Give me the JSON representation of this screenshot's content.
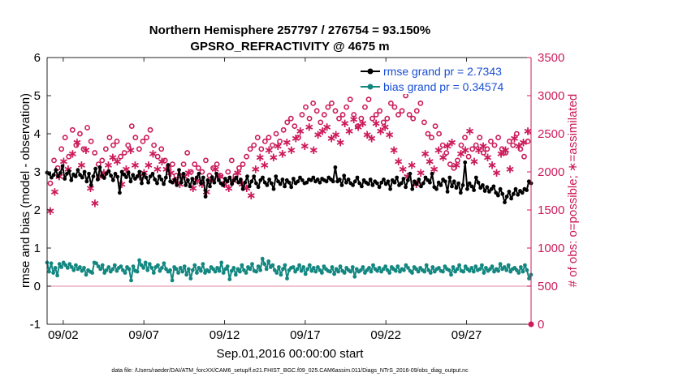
{
  "chart_data": {
    "type": "line",
    "title": "Northern Hemisphere 257797 / 276754 = 93.150%",
    "subtitle": "GPSRO_REFRACTIVITY @ 4675 m",
    "xlabel": "Sep.01,2016 00:00:00 start",
    "ylabel": "rmse and bias (model - observation)",
    "ylabel_right": "# of obs: o=possible; ∗=assimilated",
    "footnote": "data file: /Users/raeder/DAI/ATM_forcXX/CAM6_setup/f.e21.FHIST_BGC.f09_025.CAM6assim.011/Diags_NTrS_2016-09/obs_diag_output.nc",
    "x_tick_labels": [
      "09/02",
      "09/07",
      "09/12",
      "09/17",
      "09/22",
      "09/27"
    ],
    "x_tick_days": [
      2,
      7,
      12,
      17,
      22,
      27
    ],
    "xlim": [
      1,
      31
    ],
    "ylim": [
      -1,
      6
    ],
    "y_ticks": [
      -1,
      0,
      1,
      2,
      3,
      4,
      5,
      6
    ],
    "ylim_right": [
      0,
      3500
    ],
    "y_ticks_right": [
      0,
      500,
      1000,
      1500,
      2000,
      2500,
      3000,
      3500
    ],
    "legend_position": "top-right",
    "legend": [
      "rmse grand pr = 2.7343",
      "bias grand pr = 0.34574"
    ],
    "series": [
      {
        "name": "rmse grand pr = 2.7343",
        "color": "#000000",
        "axis": "left",
        "values": [
          2.98,
          2.95,
          2.85,
          2.92,
          3.05,
          2.88,
          2.97,
          3.15,
          2.82,
          2.95,
          3.02,
          2.78,
          2.93,
          2.88,
          3.05,
          2.92,
          2.85,
          3.0,
          2.75,
          2.95,
          2.65,
          2.88,
          3.08,
          2.8,
          3.12,
          2.9,
          2.84,
          2.95,
          3.02,
          2.9,
          2.78,
          2.95,
          2.87,
          2.45,
          3.0,
          2.93,
          2.86,
          2.98,
          2.75,
          2.92,
          2.82,
          2.88,
          3.0,
          2.7,
          2.95,
          2.85,
          2.72,
          2.88,
          2.95,
          2.8,
          2.7,
          2.88,
          2.8,
          2.68,
          2.85,
          3.18,
          2.75,
          2.72,
          2.8,
          2.65,
          3.05,
          2.72,
          2.95,
          2.65,
          2.78,
          2.62,
          2.82,
          2.7,
          2.85,
          2.95,
          2.7,
          2.85,
          2.35,
          2.78,
          2.62,
          2.86,
          2.72,
          2.95,
          2.78,
          2.7,
          2.65,
          2.82,
          2.75,
          2.85,
          2.68,
          2.78,
          2.85,
          2.72,
          2.8,
          2.55,
          2.72,
          2.88,
          2.62,
          2.75,
          2.88,
          2.7,
          2.6,
          2.78,
          2.85,
          2.72,
          2.65,
          2.8,
          2.7,
          2.55,
          2.88,
          2.75,
          2.68,
          2.8,
          2.62,
          2.78,
          2.72,
          2.6,
          2.82,
          2.7,
          2.75,
          2.85,
          2.78,
          2.7,
          2.72,
          2.8,
          2.78,
          2.85,
          2.75,
          2.8,
          2.72,
          2.82,
          2.78,
          2.75,
          2.85,
          2.8,
          2.75,
          3.12,
          2.75,
          2.8,
          2.65,
          2.9,
          2.72,
          2.8,
          2.7,
          2.65,
          2.75,
          2.85,
          2.7,
          2.62,
          2.78,
          2.72,
          2.68,
          2.8,
          2.65,
          2.75,
          2.7,
          2.6,
          2.72,
          2.8,
          2.68,
          2.75,
          2.55,
          2.78,
          2.72,
          2.85,
          2.65,
          2.7,
          2.82,
          2.6,
          2.78,
          2.95,
          2.55,
          2.75,
          2.68,
          2.8,
          2.62,
          2.7,
          2.85,
          2.78,
          2.72,
          2.95,
          2.6,
          2.55,
          2.72,
          2.65,
          2.8,
          2.75,
          2.48,
          2.85,
          2.62,
          2.75,
          2.58,
          2.7,
          2.45,
          2.65,
          3.25,
          2.55,
          2.7,
          2.62,
          2.52,
          2.85,
          2.72,
          2.58,
          2.65,
          2.5,
          2.6,
          2.48,
          2.55,
          2.62,
          2.45,
          2.38,
          2.55,
          2.42,
          2.2,
          2.35,
          2.48,
          2.3,
          2.42,
          2.55,
          2.4,
          2.5,
          2.45,
          2.55,
          2.52,
          2.75,
          2.7
        ]
      },
      {
        "name": "bias grand pr = 0.34574",
        "color": "#138780",
        "axis": "left",
        "values": [
          0.62,
          0.38,
          0.6,
          0.35,
          0.48,
          0.28,
          0.58,
          0.5,
          0.62,
          0.55,
          0.48,
          0.58,
          0.5,
          0.42,
          0.55,
          0.45,
          0.5,
          0.4,
          0.48,
          0.3,
          0.42,
          0.38,
          0.35,
          0.62,
          0.6,
          0.52,
          0.45,
          0.55,
          0.35,
          0.42,
          0.5,
          0.38,
          0.45,
          0.55,
          0.4,
          0.48,
          0.52,
          0.42,
          0.35,
          0.5,
          0.45,
          0.15,
          0.52,
          0.4,
          0.38,
          0.68,
          0.55,
          0.48,
          0.62,
          0.42,
          0.58,
          0.48,
          0.35,
          0.5,
          0.55,
          0.4,
          0.48,
          0.6,
          0.45,
          0.38,
          0.42,
          0.15,
          0.5,
          0.45,
          0.35,
          0.48,
          0.38,
          0.52,
          0.3,
          0.45,
          0.2,
          0.42,
          0.55,
          0.35,
          0.48,
          0.4,
          0.58,
          0.35,
          0.42,
          0.38,
          0.5,
          0.45,
          0.38,
          0.48,
          0.4,
          0.62,
          0.35,
          0.45,
          0.52,
          0.18,
          0.4,
          0.48,
          0.3,
          0.45,
          0.38,
          0.55,
          0.42,
          0.35,
          0.5,
          0.45,
          0.58,
          0.4,
          0.38,
          0.52,
          0.42,
          0.72,
          0.58,
          0.45,
          0.65,
          0.5,
          0.55,
          0.42,
          0.35,
          0.5,
          0.3,
          0.45,
          0.55,
          0.2,
          0.42,
          0.48,
          0.5,
          0.38,
          0.45,
          0.55,
          0.4,
          0.5,
          0.32,
          0.45,
          0.55,
          0.4,
          0.48,
          0.38,
          0.5,
          0.42,
          0.35,
          0.52,
          0.45,
          0.4,
          0.38,
          0.5,
          0.32,
          0.45,
          0.38,
          0.52,
          0.4,
          0.35,
          0.48,
          0.42,
          0.38,
          0.5,
          0.25,
          0.45,
          0.38,
          0.42,
          0.5,
          0.35,
          0.42,
          0.48,
          0.38,
          0.55,
          0.45,
          0.4,
          0.48,
          0.38,
          0.45,
          0.52,
          0.42,
          0.35,
          0.5,
          0.45,
          0.4,
          0.52,
          0.38,
          0.45,
          0.42,
          0.55,
          0.48,
          0.4,
          0.35,
          0.5,
          0.45,
          0.38,
          0.48,
          0.42,
          0.38,
          0.55,
          0.42,
          0.35,
          0.5,
          0.38,
          0.45,
          0.48,
          0.4,
          0.38,
          0.52,
          0.45,
          0.42,
          0.3,
          0.5,
          0.38,
          0.45,
          0.55,
          0.4,
          0.38,
          0.52,
          0.45,
          0.4,
          0.48,
          0.38,
          0.52,
          0.42,
          0.45,
          0.55,
          0.35,
          0.48,
          0.4,
          0.45,
          0.52,
          0.38,
          0.45,
          0.4,
          0.58,
          0.45,
          0.5,
          0.42,
          0.55,
          0.38,
          0.45,
          0.48,
          0.42,
          0.35,
          0.5,
          0.38,
          0.55,
          0.42,
          0.2,
          0.3
        ]
      },
      {
        "name": "# of obs possible",
        "marker": "o",
        "color": "#cc1a5a",
        "axis": "right",
        "values": [
          1850,
          2150,
          2050,
          2300,
          2450,
          2200,
          2550,
          2350,
          2500,
          2300,
          2580,
          2400,
          2250,
          2100,
          2150,
          2300,
          2450,
          2350,
          2400,
          2200,
          2250,
          2350,
          2600,
          2450,
          2300,
          2400,
          2450,
          2550,
          2350,
          2200,
          2300,
          2150,
          2050,
          2100,
          1950,
          1950,
          2100,
          2250,
          2000,
          2100,
          2050,
          2000,
          2150,
          1950,
          2050,
          2100,
          1950,
          1850,
          2000,
          2150,
          1950,
          2050,
          2100,
          2200,
          2300,
          2350,
          2450,
          2300,
          2400,
          2450,
          2350,
          2500,
          2400,
          2550,
          2650,
          2700,
          2600,
          2450,
          2750,
          2850,
          2700,
          2900,
          2800,
          2650,
          2750,
          2850,
          2900,
          2800,
          2700,
          2750,
          2850,
          2950,
          2750,
          2600,
          2700,
          2850,
          2950,
          2700,
          2750,
          2800,
          2650,
          2700,
          2900,
          2850,
          2750,
          2800,
          3000,
          2750,
          2700,
          2800,
          2900,
          2650,
          2500,
          2450,
          2600,
          2500,
          2350,
          2250,
          2100,
          2050,
          2150,
          2350,
          2450,
          2200,
          2300,
          2350,
          2450,
          2250,
          2300,
          2400,
          2350,
          2450,
          2300,
          2250,
          2400,
          2350,
          2500,
          2300,
          2200,
          2400
        ]
      },
      {
        "name": "# of obs assimilated",
        "marker": "*",
        "color": "#cc1a5a",
        "axis": "right",
        "values": [
          1500,
          1750,
          1950,
          2150,
          2050,
          2250,
          2400,
          2100,
          2300,
          1800,
          1600,
          1950,
          2000,
          2100,
          2200,
          2150,
          1850,
          2050,
          2300,
          2100,
          1950,
          2000,
          2100,
          2250,
          2050,
          2150,
          2050,
          2000,
          1900,
          1850,
          1950,
          2000,
          1800,
          1900,
          1850,
          1750,
          1900,
          2050,
          1950,
          1850,
          1800,
          1900,
          2000,
          1850,
          1800,
          1700,
          2050,
          2200,
          2100,
          2300,
          2200,
          2350,
          2250,
          2400,
          2300,
          2450,
          2550,
          2350,
          2600,
          2300,
          2500,
          2550,
          2600,
          2450,
          2500,
          2400,
          2650,
          2550,
          2700,
          2600,
          2650,
          2500,
          2450,
          2650,
          2550,
          2600,
          2500,
          2300,
          2150,
          2050,
          1950,
          2100,
          1850,
          2000,
          2250,
          2150,
          2050,
          2300,
          2200,
          2350,
          2400,
          2100,
          2250,
          2300,
          2550,
          2150,
          2300,
          2350,
          2200,
          2100,
          2000,
          2250,
          2300,
          2050,
          2450,
          2350,
          2400,
          2550
        ]
      }
    ]
  }
}
